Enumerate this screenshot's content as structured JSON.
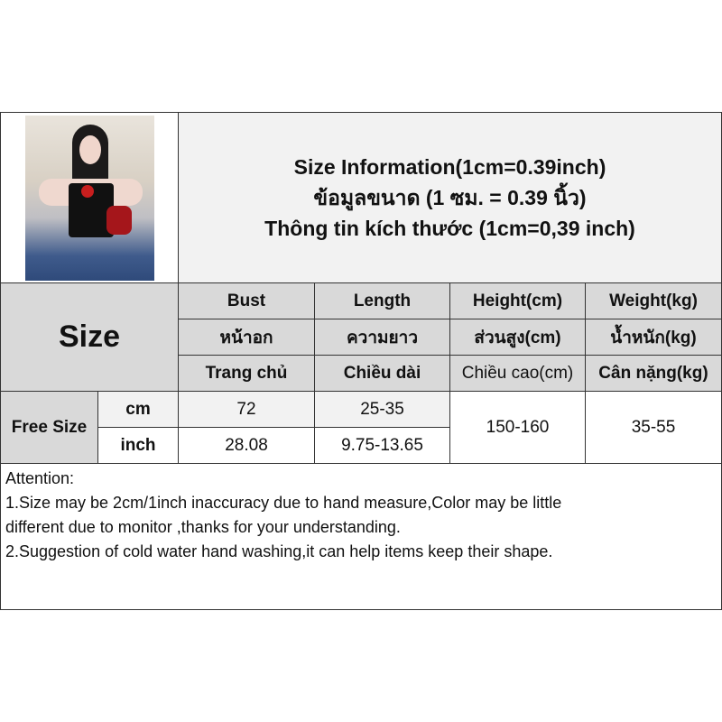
{
  "title": {
    "en": "Size Information(1cm=0.39inch)",
    "th": "ข้อมูลขนาด (1 ซม. = 0.39 นิ้ว)",
    "vi": "Thông tin kích thước (1cm=0,39 inch)"
  },
  "size_label": "Size",
  "columns": [
    {
      "en": "Bust",
      "th": "หน้าอก",
      "vi": "Trang chủ"
    },
    {
      "en": "Length",
      "th": "ความยาว",
      "vi": "Chiều dài"
    },
    {
      "en": "Height(cm)",
      "th": "ส่วนสูง(cm)",
      "vi": "Chiều cao(cm)"
    },
    {
      "en": "Weight(kg)",
      "th": "น้ำหนัก(kg)",
      "vi": "Cân nặng(kg)"
    }
  ],
  "row": {
    "size": "Free Size",
    "cm": {
      "unit": "cm",
      "bust": "72",
      "length": "25-35"
    },
    "inch": {
      "unit": "inch",
      "bust": "28.08",
      "length": "9.75-13.65"
    },
    "height": "150-160",
    "weight": "35-55"
  },
  "notes": [
    "Attention:",
    "1.Size may be 2cm/1inch inaccuracy due to hand measure,Color may be little",
    "different due to monitor ,thanks for your understanding.",
    "2.Suggestion of cold water hand washing,it can help items keep their shape."
  ]
}
